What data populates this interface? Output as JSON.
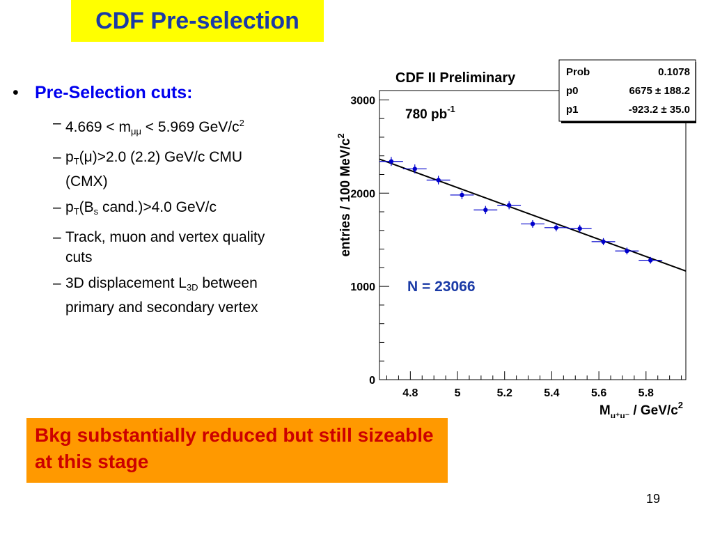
{
  "slide": {
    "title": "CDF Pre-selection",
    "page_number": "19",
    "conclusion": "Bkg substantially reduced but still sizeable at this stage"
  },
  "bullets": {
    "heading": "Pre-Selection cuts:",
    "items": [
      {
        "parts": [
          {
            "t": "4.669 < m"
          },
          {
            "t": "μμ",
            "style": "sub"
          },
          {
            "t": " < 5.969 GeV/c"
          },
          {
            "t": "2",
            "style": "sup"
          }
        ]
      },
      {
        "parts": [
          {
            "t": "p"
          },
          {
            "t": "T",
            "style": "sub"
          },
          {
            "t": "(μ)>2.0 (2.2) GeV/c CMU (CMX)"
          }
        ]
      },
      {
        "parts": [
          {
            "t": "p"
          },
          {
            "t": "T",
            "style": "sub"
          },
          {
            "t": "(B"
          },
          {
            "t": "s",
            "style": "sub"
          },
          {
            "t": " cand.)>4.0 GeV/c"
          }
        ]
      },
      {
        "parts": [
          {
            "t": "Track, muon and vertex quality cuts"
          }
        ]
      },
      {
        "parts": [
          {
            "t": "3D displacement L"
          },
          {
            "t": "3D",
            "style": "sub"
          },
          {
            "t": " between primary and secondary vertex"
          }
        ]
      }
    ]
  },
  "chart_data": {
    "type": "scatter",
    "title": "CDF II Preliminary",
    "luminosity": {
      "text": "780 pb",
      "sup": "-1"
    },
    "annotation": "N = 23066",
    "xlabel": {
      "main": "M",
      "sub": "μ⁺μ⁻",
      "rest": " / GeV/c",
      "sup": "2"
    },
    "ylabel": {
      "main": "entries / 100 MeV/c",
      "sup": "2"
    },
    "xlim": [
      4.669,
      5.969
    ],
    "ylim": [
      0,
      3100
    ],
    "xticks": [
      4.8,
      5,
      5.2,
      5.4,
      5.6,
      5.8
    ],
    "xtick_labels": [
      "4.8",
      "5",
      "5.2",
      "5.4",
      "5.6",
      "5.8"
    ],
    "yticks": [
      0,
      1000,
      2000,
      3000
    ],
    "ytick_labels": [
      "0",
      "1000",
      "2000",
      "3000"
    ],
    "points": [
      {
        "x": 4.719,
        "y": 2340,
        "xerr": 0.05,
        "yerr": 48
      },
      {
        "x": 4.819,
        "y": 2260,
        "xerr": 0.05,
        "yerr": 48
      },
      {
        "x": 4.919,
        "y": 2140,
        "xerr": 0.05,
        "yerr": 46
      },
      {
        "x": 5.019,
        "y": 1980,
        "xerr": 0.05,
        "yerr": 45
      },
      {
        "x": 5.119,
        "y": 1820,
        "xerr": 0.05,
        "yerr": 43
      },
      {
        "x": 5.219,
        "y": 1870,
        "xerr": 0.05,
        "yerr": 43
      },
      {
        "x": 5.319,
        "y": 1670,
        "xerr": 0.05,
        "yerr": 41
      },
      {
        "x": 5.419,
        "y": 1630,
        "xerr": 0.05,
        "yerr": 40
      },
      {
        "x": 5.519,
        "y": 1620,
        "xerr": 0.05,
        "yerr": 40
      },
      {
        "x": 5.619,
        "y": 1480,
        "xerr": 0.05,
        "yerr": 38
      },
      {
        "x": 5.719,
        "y": 1380,
        "xerr": 0.05,
        "yerr": 37
      },
      {
        "x": 5.819,
        "y": 1280,
        "xerr": 0.05,
        "yerr": 36
      }
    ],
    "fit": {
      "type": "linear",
      "p0": 6675,
      "p1": -923.2
    },
    "stats_box": [
      {
        "label": "Prob",
        "value": "0.1078"
      },
      {
        "label": "p0",
        "value": "6675 ± 188.2"
      },
      {
        "label": "p1",
        "value": "-923.2 ± 35.0"
      }
    ],
    "colors": {
      "points": "#0000cc",
      "fit": "#000000",
      "annotation": "#1a3aa6"
    }
  }
}
